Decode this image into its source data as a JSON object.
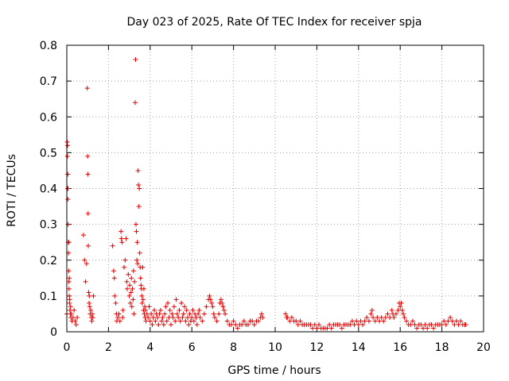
{
  "chart_data": {
    "type": "scatter",
    "title": "Day 023 of 2025, Rate Of TEC Index for receiver spja",
    "xlabel": "GPS time / hours",
    "ylabel": "ROTI / TECUs",
    "xlim": [
      0,
      20
    ],
    "ylim": [
      0,
      0.8
    ],
    "xticks": [
      "0",
      "2",
      "4",
      "6",
      "8",
      "10",
      "12",
      "14",
      "16",
      "18",
      "20"
    ],
    "yticks": [
      "0",
      "0.1",
      "0.2",
      "0.3",
      "0.4",
      "0.5",
      "0.6",
      "0.7",
      "0.8"
    ],
    "grid": true,
    "marker": "plus",
    "color": "#e00000",
    "series": [
      {
        "name": "ROTI",
        "points": [
          [
            0.0,
            0.05
          ],
          [
            0.02,
            0.53
          ],
          [
            0.03,
            0.49
          ],
          [
            0.04,
            0.4
          ],
          [
            0.05,
            0.37
          ],
          [
            0.06,
            0.3
          ],
          [
            0.07,
            0.25
          ],
          [
            0.08,
            0.22
          ],
          [
            0.09,
            0.17
          ],
          [
            0.1,
            0.14
          ],
          [
            0.11,
            0.12
          ],
          [
            0.12,
            0.1
          ],
          [
            0.13,
            0.08
          ],
          [
            0.15,
            0.06
          ],
          [
            0.17,
            0.05
          ],
          [
            0.2,
            0.04
          ],
          [
            0.25,
            0.03
          ],
          [
            0.3,
            0.04
          ],
          [
            0.35,
            0.06
          ],
          [
            0.4,
            0.03
          ],
          [
            0.45,
            0.02
          ],
          [
            0.5,
            0.04
          ],
          [
            0.04,
            0.52
          ],
          [
            0.05,
            0.44
          ],
          [
            0.06,
            0.4
          ],
          [
            0.1,
            0.25
          ],
          [
            0.12,
            0.15
          ],
          [
            0.14,
            0.09
          ],
          [
            0.18,
            0.07
          ],
          [
            0.22,
            0.05
          ],
          [
            0.8,
            0.27
          ],
          [
            0.85,
            0.2
          ],
          [
            0.9,
            0.14
          ],
          [
            0.95,
            0.19
          ],
          [
            0.98,
            0.68
          ],
          [
            1.0,
            0.49
          ],
          [
            1.01,
            0.44
          ],
          [
            1.02,
            0.33
          ],
          [
            1.03,
            0.24
          ],
          [
            1.05,
            0.11
          ],
          [
            1.07,
            0.08
          ],
          [
            1.08,
            0.1
          ],
          [
            1.1,
            0.07
          ],
          [
            1.12,
            0.05
          ],
          [
            1.15,
            0.06
          ],
          [
            1.18,
            0.04
          ],
          [
            1.2,
            0.03
          ],
          [
            1.22,
            0.05
          ],
          [
            1.25,
            0.04
          ],
          [
            1.28,
            0.1
          ],
          [
            2.2,
            0.24
          ],
          [
            2.25,
            0.17
          ],
          [
            2.28,
            0.15
          ],
          [
            2.3,
            0.1
          ],
          [
            2.35,
            0.08
          ],
          [
            2.38,
            0.05
          ],
          [
            2.4,
            0.03
          ],
          [
            2.45,
            0.04
          ],
          [
            2.5,
            0.05
          ],
          [
            2.55,
            0.03
          ],
          [
            2.6,
            0.28
          ],
          [
            2.62,
            0.26
          ],
          [
            2.65,
            0.25
          ],
          [
            2.68,
            0.04
          ],
          [
            2.7,
            0.06
          ],
          [
            2.75,
            0.18
          ],
          [
            2.8,
            0.2
          ],
          [
            2.85,
            0.26
          ],
          [
            2.88,
            0.14
          ],
          [
            2.9,
            0.12
          ],
          [
            2.95,
            0.16
          ],
          [
            3.0,
            0.1
          ],
          [
            3.02,
            0.13
          ],
          [
            3.05,
            0.08
          ],
          [
            3.08,
            0.11
          ],
          [
            3.1,
            0.15
          ],
          [
            3.12,
            0.07
          ],
          [
            3.15,
            0.12
          ],
          [
            3.18,
            0.09
          ],
          [
            3.2,
            0.17
          ],
          [
            3.22,
            0.05
          ],
          [
            3.25,
            0.14
          ],
          [
            3.28,
            0.64
          ],
          [
            3.3,
            0.76
          ],
          [
            3.32,
            0.3
          ],
          [
            3.34,
            0.28
          ],
          [
            3.36,
            0.2
          ],
          [
            3.38,
            0.25
          ],
          [
            3.4,
            0.19
          ],
          [
            3.42,
            0.45
          ],
          [
            3.44,
            0.41
          ],
          [
            3.46,
            0.35
          ],
          [
            3.48,
            0.4
          ],
          [
            3.5,
            0.22
          ],
          [
            3.52,
            0.18
          ],
          [
            3.54,
            0.15
          ],
          [
            3.56,
            0.13
          ],
          [
            3.58,
            0.12
          ],
          [
            3.6,
            0.1
          ],
          [
            3.62,
            0.08
          ],
          [
            3.64,
            0.18
          ],
          [
            3.66,
            0.09
          ],
          [
            3.68,
            0.06
          ],
          [
            3.7,
            0.12
          ],
          [
            3.72,
            0.05
          ],
          [
            3.74,
            0.07
          ],
          [
            3.76,
            0.04
          ],
          [
            3.78,
            0.06
          ],
          [
            3.8,
            0.03
          ],
          [
            3.85,
            0.05
          ],
          [
            3.9,
            0.04
          ],
          [
            3.95,
            0.07
          ],
          [
            4.0,
            0.03
          ],
          [
            4.05,
            0.05
          ],
          [
            4.1,
            0.02
          ],
          [
            4.15,
            0.04
          ],
          [
            4.2,
            0.06
          ],
          [
            4.25,
            0.03
          ],
          [
            4.3,
            0.05
          ],
          [
            4.35,
            0.04
          ],
          [
            4.4,
            0.02
          ],
          [
            4.45,
            0.05
          ],
          [
            4.5,
            0.06
          ],
          [
            4.55,
            0.03
          ],
          [
            4.6,
            0.04
          ],
          [
            4.65,
            0.02
          ],
          [
            4.7,
            0.05
          ],
          [
            4.75,
            0.07
          ],
          [
            4.8,
            0.03
          ],
          [
            4.85,
            0.08
          ],
          [
            4.9,
            0.04
          ],
          [
            4.95,
            0.06
          ],
          [
            5.0,
            0.02
          ],
          [
            5.05,
            0.05
          ],
          [
            5.1,
            0.04
          ],
          [
            5.15,
            0.07
          ],
          [
            5.2,
            0.03
          ],
          [
            5.25,
            0.09
          ],
          [
            5.3,
            0.05
          ],
          [
            5.35,
            0.04
          ],
          [
            5.4,
            0.06
          ],
          [
            5.45,
            0.03
          ],
          [
            5.5,
            0.08
          ],
          [
            5.55,
            0.04
          ],
          [
            5.6,
            0.05
          ],
          [
            5.65,
            0.07
          ],
          [
            5.7,
            0.03
          ],
          [
            5.75,
            0.06
          ],
          [
            5.8,
            0.04
          ],
          [
            5.85,
            0.02
          ],
          [
            5.9,
            0.05
          ],
          [
            5.95,
            0.03
          ],
          [
            6.0,
            0.04
          ],
          [
            6.05,
            0.06
          ],
          [
            6.1,
            0.03
          ],
          [
            6.15,
            0.05
          ],
          [
            6.2,
            0.04
          ],
          [
            6.25,
            0.02
          ],
          [
            6.3,
            0.05
          ],
          [
            6.35,
            0.06
          ],
          [
            6.4,
            0.04
          ],
          [
            6.5,
            0.03
          ],
          [
            6.6,
            0.05
          ],
          [
            6.7,
            0.07
          ],
          [
            6.8,
            0.09
          ],
          [
            6.85,
            0.1
          ],
          [
            6.9,
            0.09
          ],
          [
            6.95,
            0.08
          ],
          [
            7.0,
            0.07
          ],
          [
            7.05,
            0.05
          ],
          [
            7.1,
            0.04
          ],
          [
            7.2,
            0.03
          ],
          [
            7.3,
            0.05
          ],
          [
            7.35,
            0.08
          ],
          [
            7.4,
            0.09
          ],
          [
            7.45,
            0.08
          ],
          [
            7.5,
            0.07
          ],
          [
            7.55,
            0.06
          ],
          [
            7.6,
            0.05
          ],
          [
            7.7,
            0.03
          ],
          [
            7.8,
            0.02
          ],
          [
            7.9,
            0.02
          ],
          [
            8.0,
            0.03
          ],
          [
            8.1,
            0.02
          ],
          [
            8.2,
            0.01
          ],
          [
            8.3,
            0.02
          ],
          [
            8.4,
            0.02
          ],
          [
            8.5,
            0.03
          ],
          [
            8.6,
            0.02
          ],
          [
            8.7,
            0.02
          ],
          [
            8.8,
            0.03
          ],
          [
            8.9,
            0.03
          ],
          [
            9.0,
            0.02
          ],
          [
            9.1,
            0.03
          ],
          [
            9.2,
            0.03
          ],
          [
            9.3,
            0.04
          ],
          [
            9.35,
            0.05
          ],
          [
            9.4,
            0.04
          ],
          [
            10.5,
            0.05
          ],
          [
            10.55,
            0.04
          ],
          [
            10.6,
            0.04
          ],
          [
            10.7,
            0.03
          ],
          [
            10.8,
            0.04
          ],
          [
            10.9,
            0.03
          ],
          [
            11.0,
            0.03
          ],
          [
            11.1,
            0.02
          ],
          [
            11.2,
            0.03
          ],
          [
            11.3,
            0.02
          ],
          [
            11.4,
            0.02
          ],
          [
            11.5,
            0.02
          ],
          [
            11.6,
            0.02
          ],
          [
            11.7,
            0.02
          ],
          [
            11.8,
            0.01
          ],
          [
            11.9,
            0.02
          ],
          [
            12.0,
            0.01
          ],
          [
            12.1,
            0.02
          ],
          [
            12.2,
            0.01
          ],
          [
            12.3,
            0.01
          ],
          [
            12.4,
            0.01
          ],
          [
            12.5,
            0.01
          ],
          [
            12.6,
            0.02
          ],
          [
            12.7,
            0.01
          ],
          [
            12.8,
            0.02
          ],
          [
            12.9,
            0.02
          ],
          [
            13.0,
            0.02
          ],
          [
            13.1,
            0.02
          ],
          [
            13.2,
            0.01
          ],
          [
            13.3,
            0.02
          ],
          [
            13.4,
            0.02
          ],
          [
            13.5,
            0.02
          ],
          [
            13.6,
            0.02
          ],
          [
            13.7,
            0.03
          ],
          [
            13.8,
            0.02
          ],
          [
            13.9,
            0.03
          ],
          [
            14.0,
            0.02
          ],
          [
            14.1,
            0.03
          ],
          [
            14.2,
            0.02
          ],
          [
            14.3,
            0.03
          ],
          [
            14.4,
            0.04
          ],
          [
            14.5,
            0.03
          ],
          [
            14.6,
            0.05
          ],
          [
            14.65,
            0.06
          ],
          [
            14.7,
            0.04
          ],
          [
            14.8,
            0.03
          ],
          [
            14.9,
            0.04
          ],
          [
            15.0,
            0.03
          ],
          [
            15.1,
            0.04
          ],
          [
            15.2,
            0.03
          ],
          [
            15.3,
            0.04
          ],
          [
            15.4,
            0.05
          ],
          [
            15.5,
            0.04
          ],
          [
            15.6,
            0.06
          ],
          [
            15.65,
            0.05
          ],
          [
            15.7,
            0.04
          ],
          [
            15.8,
            0.05
          ],
          [
            15.9,
            0.06
          ],
          [
            15.95,
            0.08
          ],
          [
            16.0,
            0.07
          ],
          [
            16.05,
            0.08
          ],
          [
            16.1,
            0.06
          ],
          [
            16.15,
            0.05
          ],
          [
            16.2,
            0.04
          ],
          [
            16.3,
            0.03
          ],
          [
            16.4,
            0.02
          ],
          [
            16.5,
            0.02
          ],
          [
            16.6,
            0.03
          ],
          [
            16.7,
            0.02
          ],
          [
            16.8,
            0.01
          ],
          [
            16.9,
            0.02
          ],
          [
            17.0,
            0.02
          ],
          [
            17.1,
            0.01
          ],
          [
            17.2,
            0.02
          ],
          [
            17.3,
            0.01
          ],
          [
            17.4,
            0.02
          ],
          [
            17.5,
            0.02
          ],
          [
            17.6,
            0.01
          ],
          [
            17.7,
            0.02
          ],
          [
            17.8,
            0.02
          ],
          [
            17.9,
            0.02
          ],
          [
            18.0,
            0.02
          ],
          [
            18.1,
            0.03
          ],
          [
            18.2,
            0.02
          ],
          [
            18.3,
            0.03
          ],
          [
            18.4,
            0.04
          ],
          [
            18.5,
            0.03
          ],
          [
            18.6,
            0.02
          ],
          [
            18.7,
            0.03
          ],
          [
            18.8,
            0.02
          ],
          [
            18.9,
            0.03
          ],
          [
            19.0,
            0.02
          ],
          [
            19.1,
            0.02
          ],
          [
            19.15,
            0.02
          ]
        ]
      }
    ]
  }
}
